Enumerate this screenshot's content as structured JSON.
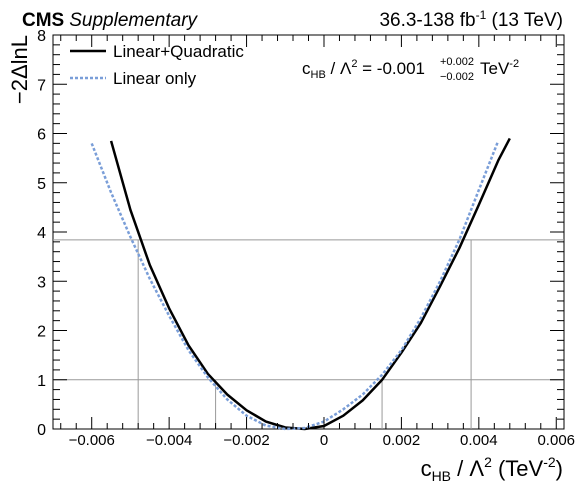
{
  "header": {
    "experiment": "CMS",
    "tag": "Supplementary",
    "lumi_prefix": "36.3-138 fb",
    "lumi_exp": "-1",
    "lumi_suffix": " (13 TeV)"
  },
  "result": {
    "param_main": "c",
    "param_sub": "HB",
    "slash": " / Λ",
    "sq": "2",
    "equals": " = -0.001",
    "err_up": "+0.002",
    "err_down": "−0.002",
    "unit_main": " TeV",
    "unit_exp": "-2"
  },
  "axes": {
    "ylabel": "−2ΔlnL",
    "xlabel_main": "c",
    "xlabel_sub": "HB",
    "xlabel_rest": " / Λ",
    "xlabel_sq": "2",
    "xlabel_unit": " (TeV",
    "xlabel_unit_exp": "-2",
    "xlabel_close": ")"
  },
  "colors": {
    "linquad": "#000000",
    "linear": "#7a9ed8",
    "reference": "#999999"
  },
  "chart_data": {
    "type": "line",
    "xlim": [
      -0.007,
      0.0062
    ],
    "ylim": [
      0,
      8
    ],
    "xticks": [
      -0.006,
      -0.004,
      -0.002,
      0,
      0.002,
      0.004,
      0.006
    ],
    "xtick_labels": [
      "−0.006",
      "−0.004",
      "−0.002",
      "0",
      "0.002",
      "0.004",
      "0.006"
    ],
    "yticks": [
      0,
      1,
      2,
      3,
      4,
      5,
      6,
      7,
      8
    ],
    "ytick_labels": [
      "0",
      "1",
      "2",
      "3",
      "4",
      "5",
      "6",
      "7",
      "8"
    ],
    "legend_position": "top-left",
    "series": [
      {
        "name": "Linear+Quadratic",
        "style": "solid",
        "x": [
          -0.0055,
          -0.005,
          -0.0045,
          -0.004,
          -0.0035,
          -0.003,
          -0.0025,
          -0.002,
          -0.0015,
          -0.001,
          -0.0005,
          0.0,
          0.0005,
          0.001,
          0.0015,
          0.002,
          0.0025,
          0.003,
          0.0035,
          0.004,
          0.0045,
          0.0048
        ],
        "y": [
          5.85,
          4.45,
          3.33,
          2.45,
          1.7,
          1.12,
          0.7,
          0.38,
          0.15,
          0.03,
          0.0,
          0.06,
          0.27,
          0.58,
          1.0,
          1.55,
          2.15,
          2.9,
          3.68,
          4.55,
          5.45,
          5.9
        ]
      },
      {
        "name": "Linear only",
        "style": "dotted",
        "x": [
          -0.006,
          -0.0055,
          -0.005,
          -0.0045,
          -0.004,
          -0.0035,
          -0.003,
          -0.0025,
          -0.002,
          -0.0015,
          -0.001,
          -0.0005,
          0.0,
          0.0005,
          0.001,
          0.0015,
          0.002,
          0.0025,
          0.003,
          0.0035,
          0.004,
          0.0045
        ],
        "y": [
          5.8,
          4.8,
          3.9,
          3.05,
          2.3,
          1.6,
          1.05,
          0.6,
          0.27,
          0.07,
          0.0,
          0.02,
          0.15,
          0.4,
          0.7,
          1.1,
          1.6,
          2.25,
          3.0,
          3.85,
          4.85,
          5.85
        ]
      }
    ],
    "reference_lines": {
      "horizontal": [
        1,
        3.84
      ],
      "vertical": [
        {
          "x": -0.0048,
          "y": 3.84
        },
        {
          "x": -0.0028,
          "y": 1
        },
        {
          "x": 0.0015,
          "y": 1
        },
        {
          "x": 0.0038,
          "y": 3.84
        }
      ]
    }
  }
}
